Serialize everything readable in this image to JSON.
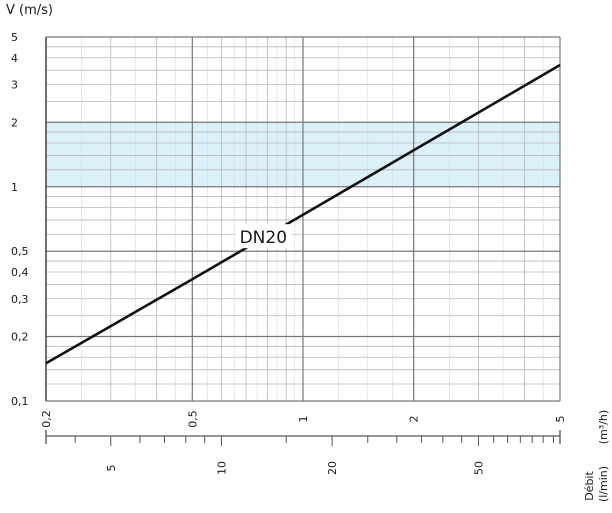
{
  "chart_data": {
    "type": "line",
    "title": "",
    "ylabel": "V (m/s)",
    "y_scale": "log",
    "x_scale": "log",
    "ylim": [
      0.1,
      5
    ],
    "x_primary": {
      "unit": "(m³/h)",
      "lim": [
        0.2,
        5
      ],
      "tick_labels": [
        {
          "value": 0.2,
          "label": "0,2"
        },
        {
          "value": 0.5,
          "label": "0,5"
        },
        {
          "value": 1,
          "label": "1"
        },
        {
          "value": 2,
          "label": "2"
        },
        {
          "value": 5,
          "label": "5"
        }
      ]
    },
    "x_secondary": {
      "title": "Débit",
      "unit": "(l/min)",
      "lim": [
        3.333,
        83.33
      ],
      "tick_labels": [
        {
          "value": 5,
          "label": "5"
        },
        {
          "value": 10,
          "label": "10"
        },
        {
          "value": 20,
          "label": "20"
        },
        {
          "value": 50,
          "label": "50"
        }
      ]
    },
    "y_tick_labels": [
      {
        "value": 0.1,
        "label": "0,1"
      },
      {
        "value": 0.2,
        "label": "0,2"
      },
      {
        "value": 0.3,
        "label": "0,3"
      },
      {
        "value": 0.4,
        "label": "0,4"
      },
      {
        "value": 0.5,
        "label": "0,5"
      },
      {
        "value": 1,
        "label": "1"
      },
      {
        "value": 2,
        "label": "2"
      },
      {
        "value": 3,
        "label": "3"
      },
      {
        "value": 4,
        "label": "4"
      },
      {
        "value": 5,
        "label": "5"
      }
    ],
    "recommended_band": {
      "y_from": 1,
      "y_to": 2,
      "color": "#dcf0fa"
    },
    "series": [
      {
        "name": "DN20",
        "color": "#111111",
        "x": [
          0.2,
          0.5,
          1,
          2,
          5
        ],
        "y": [
          0.15,
          0.37,
          0.74,
          1.48,
          3.7
        ]
      }
    ],
    "grid": true
  }
}
